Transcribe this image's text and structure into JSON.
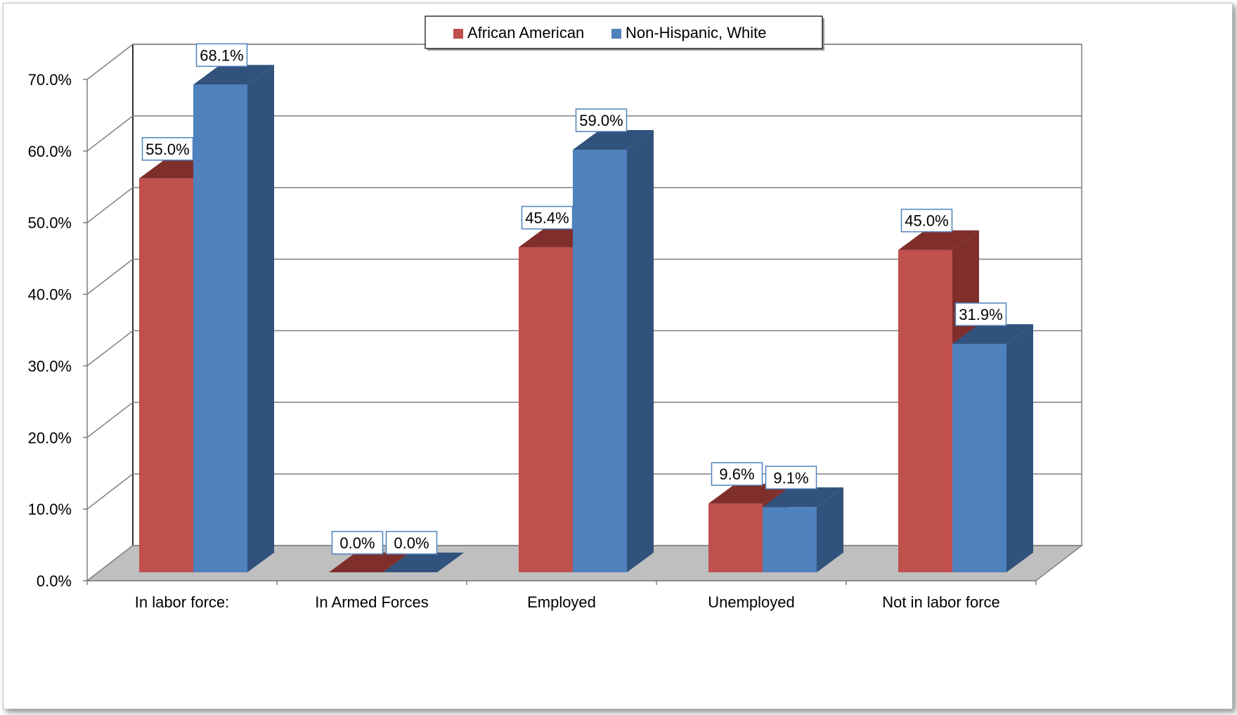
{
  "chart_data": {
    "type": "bar",
    "categories": [
      "In labor force:",
      "In Armed Forces",
      "Employed",
      "Unemployed",
      "Not in labor force"
    ],
    "series": [
      {
        "name": "African American",
        "values": [
          55.0,
          0.0,
          45.4,
          9.6,
          45.0
        ],
        "color": "#c0504d",
        "side_color": "#7f2e2c"
      },
      {
        "name": "Non-Hispanic, White",
        "values": [
          68.1,
          0.0,
          59.0,
          9.1,
          31.9
        ],
        "color": "#4f81bd",
        "side_color": "#30527c"
      }
    ],
    "data_labels": [
      [
        "55.0%",
        "0.0%",
        "45.4%",
        "9.6%",
        "45.0%"
      ],
      [
        "68.1%",
        "0.0%",
        "59.0%",
        "9.1%",
        "31.9%"
      ]
    ],
    "y_ticks": [
      "0.0%",
      "10.0%",
      "20.0%",
      "30.0%",
      "40.0%",
      "50.0%",
      "60.0%",
      "70.0%"
    ],
    "ylim": [
      0,
      70
    ],
    "grid": true,
    "legend_position": "top",
    "style": "3d-clustered-column",
    "floor_color": "#bfbfbf",
    "title": "",
    "xlabel": "",
    "ylabel": ""
  }
}
